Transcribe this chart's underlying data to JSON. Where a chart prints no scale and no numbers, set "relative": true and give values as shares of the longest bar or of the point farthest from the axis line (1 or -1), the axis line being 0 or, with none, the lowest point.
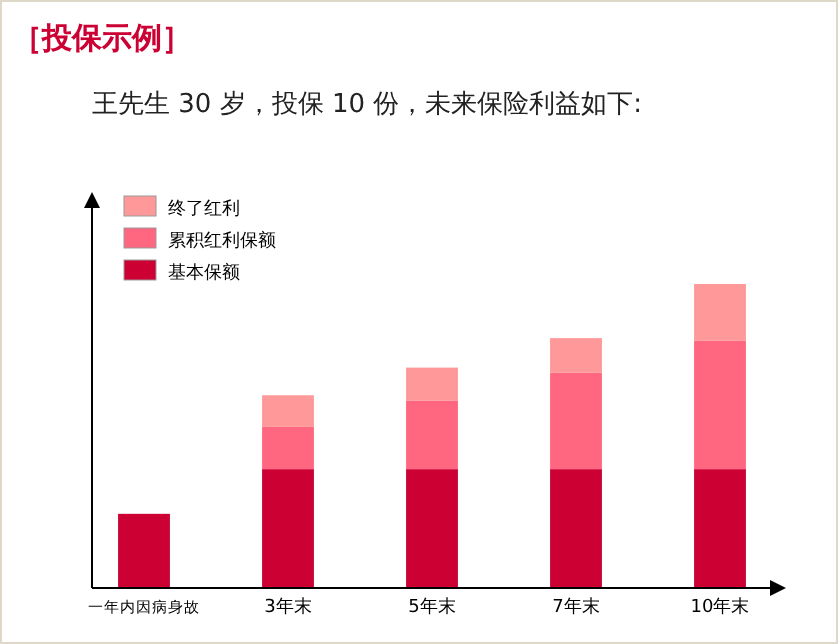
{
  "chart_data": {
    "type": "bar",
    "title": "［投保示例］",
    "subtitle": "王先生 30 岁，投保 10 份，未来保险利益如下:",
    "relative": true,
    "stacked": true,
    "legend": "top left",
    "categories": [
      "一年内因病身故",
      "3年末",
      "5年末",
      "7年末",
      "10年末"
    ],
    "series": [
      {
        "name": "基本保额",
        "color": "#cc0033",
        "values": [
          0.244,
          0.391,
          0.391,
          0.391,
          0.391
        ]
      },
      {
        "name": "累积红利保额",
        "color": "#ff6680",
        "values": [
          null,
          0.139,
          0.226,
          0.317,
          0.422
        ]
      },
      {
        "name": "终了红利",
        "color": "#ff9999",
        "values": [
          null,
          0.104,
          0.108,
          0.114,
          0.187
        ]
      }
    ]
  }
}
